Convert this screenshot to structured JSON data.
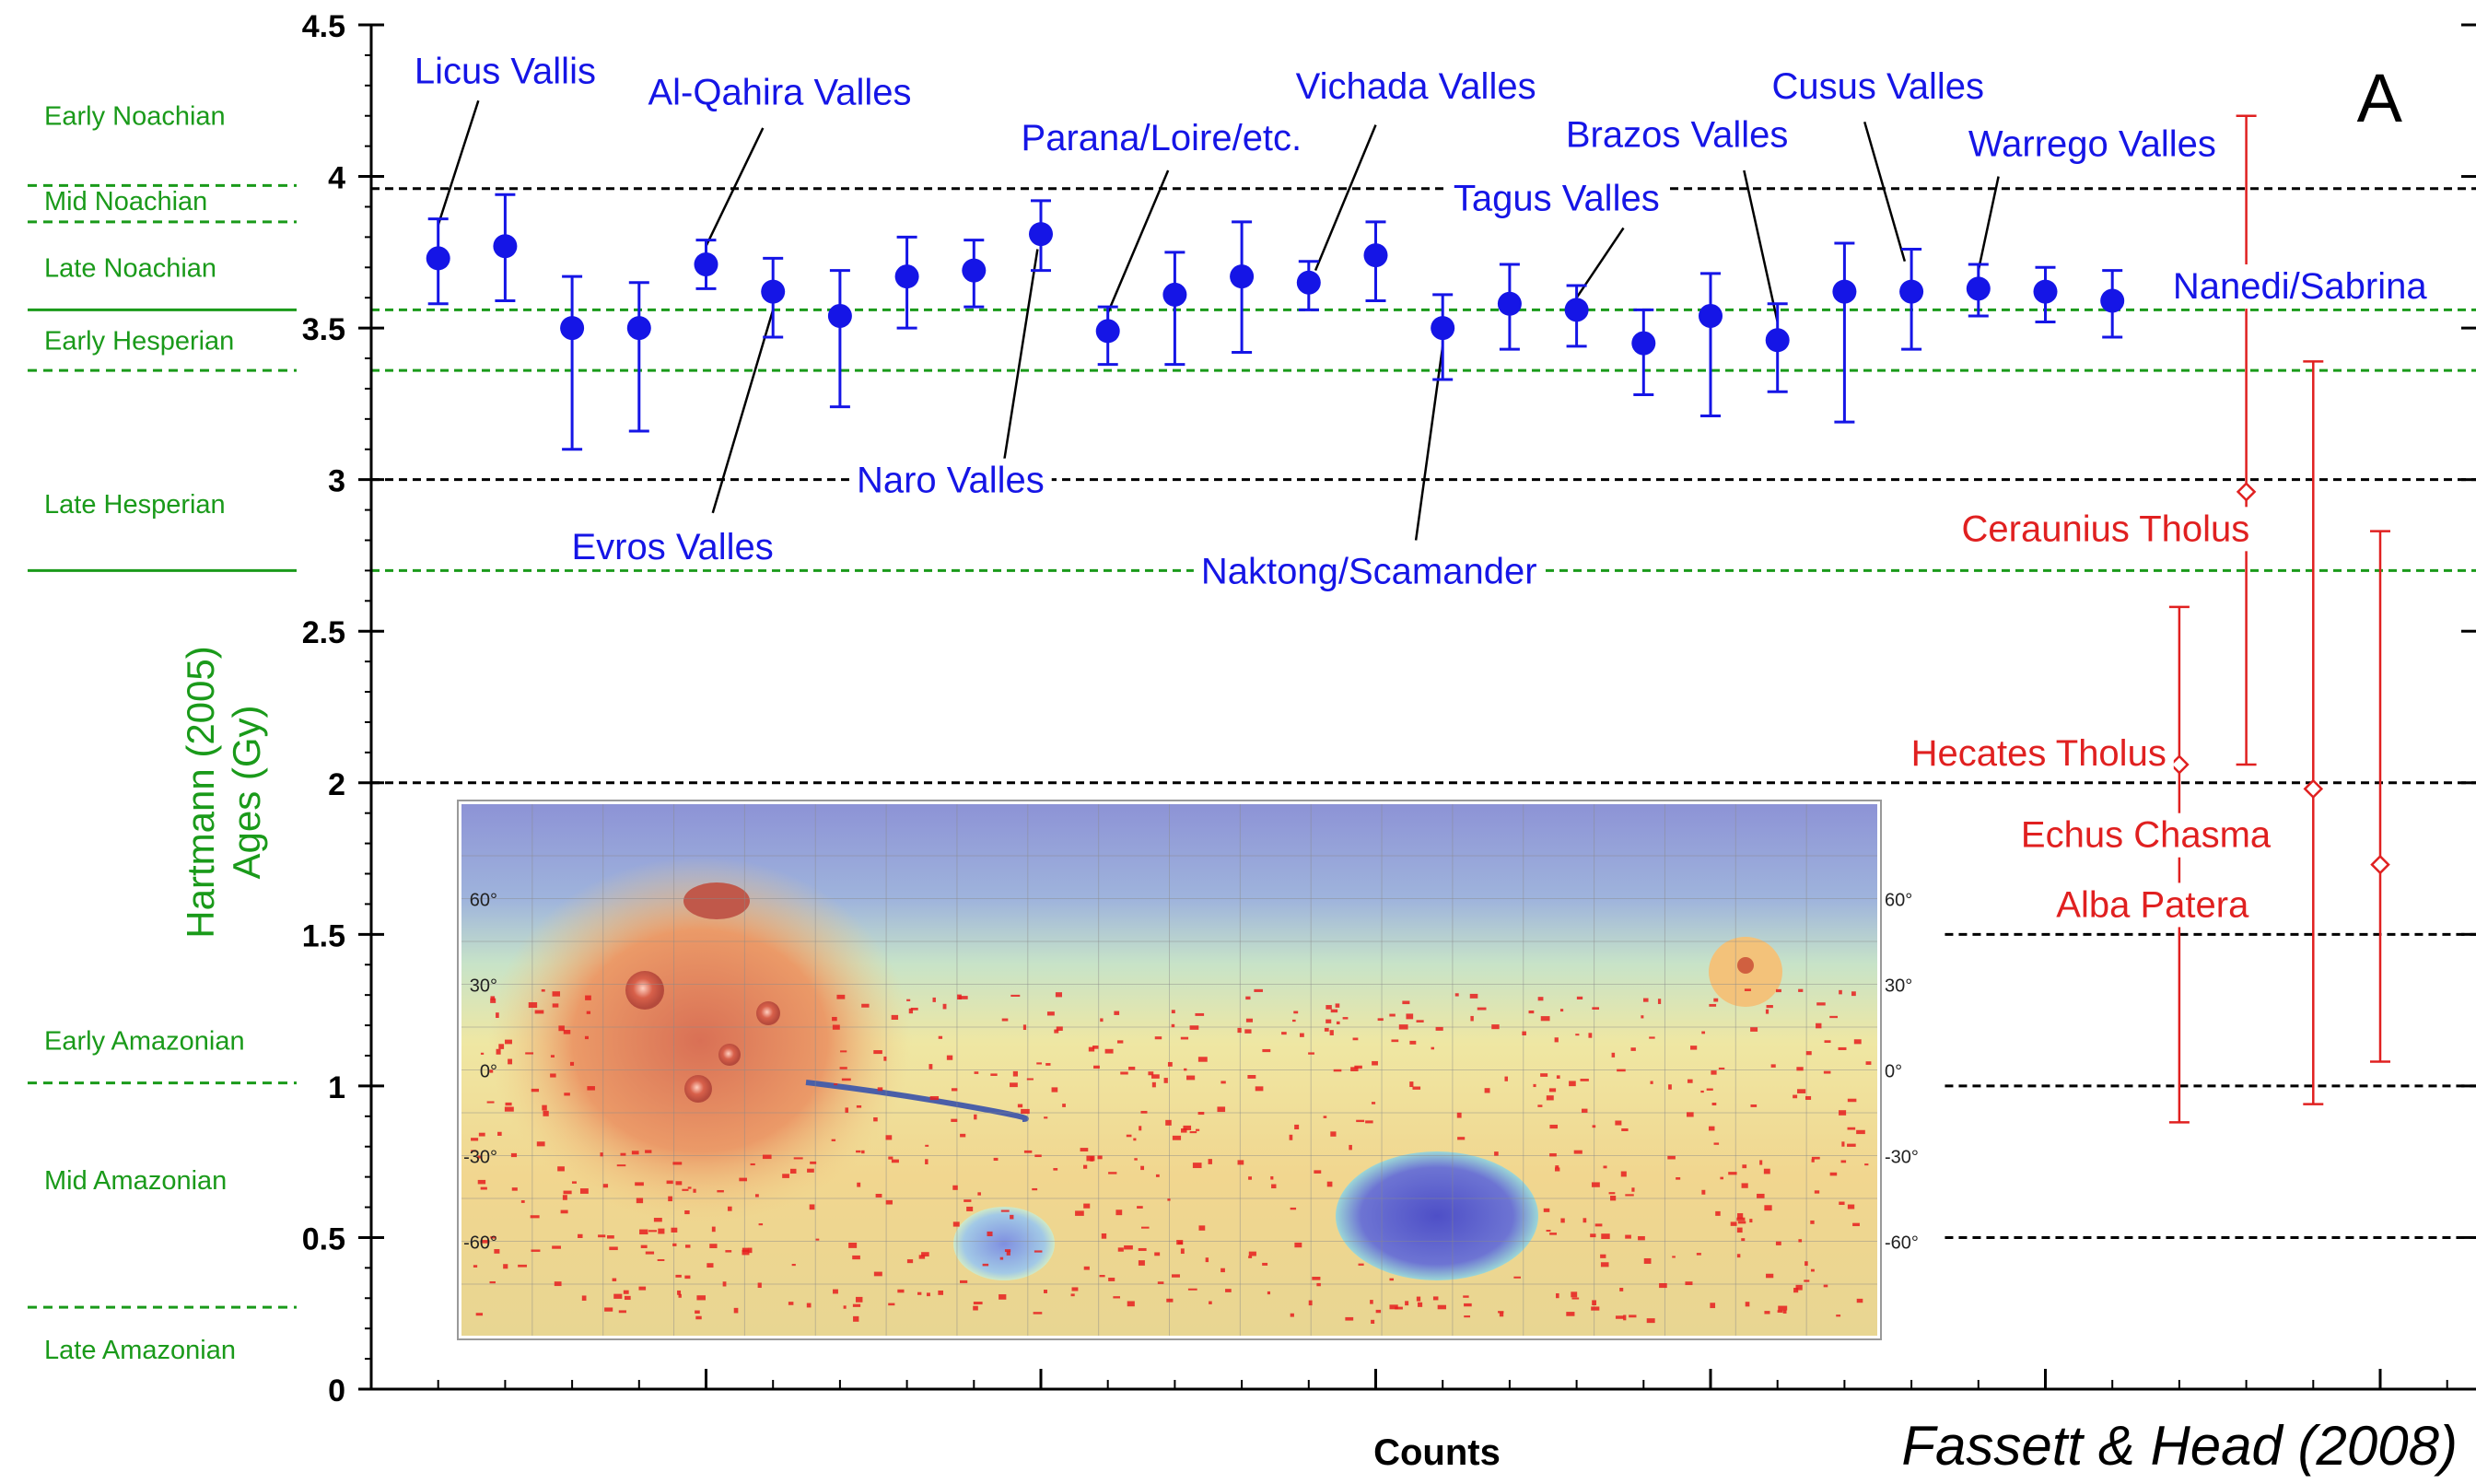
{
  "chart_data": {
    "type": "scatter",
    "panel_label": "A",
    "xlabel": "Counts",
    "ylabel_line1": "Hartmann (2005)",
    "ylabel_line2": "Ages (Gy)",
    "credit": "Fassett & Head (2008)",
    "ylim": [
      0,
      4.5
    ],
    "yticks": [
      {
        "v": 0,
        "label": "0"
      },
      {
        "v": 0.5,
        "label": "0.5"
      },
      {
        "v": 1,
        "label": "1"
      },
      {
        "v": 1.5,
        "label": "1.5"
      },
      {
        "v": 2,
        "label": "2"
      },
      {
        "v": 2.5,
        "label": "2.5"
      },
      {
        "v": 3,
        "label": "3"
      },
      {
        "v": 3.5,
        "label": "3.5"
      },
      {
        "v": 4,
        "label": "4"
      },
      {
        "v": 4.5,
        "label": "4.5"
      }
    ],
    "xlim": [
      0,
      31
    ],
    "xticks": [
      5,
      10,
      15,
      20,
      25,
      30
    ],
    "epochs": [
      {
        "name": "Early Noachian",
        "y": 4.2
      },
      {
        "name": "Mid Noachian",
        "y": 3.92
      },
      {
        "name": "Late Noachian",
        "y": 3.7
      },
      {
        "name": "Early Hesperian",
        "y": 3.46
      },
      {
        "name": "Late Hesperian",
        "y": 2.92
      },
      {
        "name": "Early Amazonian",
        "y": 1.15
      },
      {
        "name": "Mid Amazonian",
        "y": 0.69
      },
      {
        "name": "Late Amazonian",
        "y": 0.13
      }
    ],
    "epoch_boundaries": [
      {
        "y": 3.97,
        "style": "dashed"
      },
      {
        "y": 3.85,
        "style": "dashed"
      },
      {
        "y": 3.56,
        "style": "solid"
      },
      {
        "y": 3.36,
        "style": "dashed"
      },
      {
        "y": 2.7,
        "style": "solid"
      },
      {
        "y": 1.01,
        "style": "dashed"
      },
      {
        "y": 0.27,
        "style": "dashed"
      }
    ],
    "reference_lines": [
      {
        "y": 3.96,
        "color": "#000000",
        "x_from": 0,
        "x_to": 31
      },
      {
        "y": 3.56,
        "color": "#1a9a1a",
        "x_from": 0,
        "x_to": 31
      },
      {
        "y": 3.36,
        "color": "#1a9a1a",
        "x_from": 0,
        "x_to": 31
      },
      {
        "y": 3.0,
        "color": "#000000",
        "x_from": 0,
        "x_to": 31
      },
      {
        "y": 2.7,
        "color": "#1a9a1a",
        "x_from": 0,
        "x_to": 31
      },
      {
        "y": 2.0,
        "color": "#000000",
        "x_from": 0,
        "x_to": 31
      },
      {
        "y": 1.5,
        "color": "#000000",
        "x_from": 23.5,
        "x_to": 31
      },
      {
        "y": 1.0,
        "color": "#000000",
        "x_from": 23.5,
        "x_to": 31
      },
      {
        "y": 0.5,
        "color": "#000000",
        "x_from": 23.5,
        "x_to": 31
      }
    ],
    "series": [
      {
        "color": "#1515e6",
        "marker": "filled-circle",
        "points": [
          {
            "x": 1,
            "y": 3.73,
            "lo": 3.58,
            "hi": 3.86
          },
          {
            "x": 2,
            "y": 3.77,
            "lo": 3.59,
            "hi": 3.94
          },
          {
            "x": 3,
            "y": 3.5,
            "lo": 3.1,
            "hi": 3.67
          },
          {
            "x": 4,
            "y": 3.5,
            "lo": 3.16,
            "hi": 3.65
          },
          {
            "x": 5,
            "y": 3.71,
            "lo": 3.63,
            "hi": 3.79
          },
          {
            "x": 6,
            "y": 3.62,
            "lo": 3.47,
            "hi": 3.73
          },
          {
            "x": 7,
            "y": 3.54,
            "lo": 3.24,
            "hi": 3.69
          },
          {
            "x": 8,
            "y": 3.67,
            "lo": 3.5,
            "hi": 3.8
          },
          {
            "x": 9,
            "y": 3.69,
            "lo": 3.57,
            "hi": 3.79
          },
          {
            "x": 10,
            "y": 3.81,
            "lo": 3.69,
            "hi": 3.92
          },
          {
            "x": 11,
            "y": 3.49,
            "lo": 3.38,
            "hi": 3.57
          },
          {
            "x": 12,
            "y": 3.61,
            "lo": 3.38,
            "hi": 3.75
          },
          {
            "x": 13,
            "y": 3.67,
            "lo": 3.42,
            "hi": 3.85
          },
          {
            "x": 14,
            "y": 3.65,
            "lo": 3.56,
            "hi": 3.72
          },
          {
            "x": 15,
            "y": 3.74,
            "lo": 3.59,
            "hi": 3.85
          },
          {
            "x": 16,
            "y": 3.5,
            "lo": 3.33,
            "hi": 3.61
          },
          {
            "x": 17,
            "y": 3.58,
            "lo": 3.43,
            "hi": 3.71
          },
          {
            "x": 18,
            "y": 3.56,
            "lo": 3.44,
            "hi": 3.64
          },
          {
            "x": 19,
            "y": 3.45,
            "lo": 3.28,
            "hi": 3.56
          },
          {
            "x": 20,
            "y": 3.54,
            "lo": 3.21,
            "hi": 3.68
          },
          {
            "x": 21,
            "y": 3.46,
            "lo": 3.29,
            "hi": 3.58
          },
          {
            "x": 22,
            "y": 3.62,
            "lo": 3.19,
            "hi": 3.78
          },
          {
            "x": 23,
            "y": 3.62,
            "lo": 3.43,
            "hi": 3.76
          },
          {
            "x": 24,
            "y": 3.63,
            "lo": 3.54,
            "hi": 3.71
          },
          {
            "x": 25,
            "y": 3.62,
            "lo": 3.52,
            "hi": 3.7
          },
          {
            "x": 26,
            "y": 3.59,
            "lo": 3.47,
            "hi": 3.69
          }
        ]
      },
      {
        "color": "#e02020",
        "marker": "open-diamond",
        "points": [
          {
            "x": 27,
            "y": 2.06,
            "lo": 0.88,
            "hi": 2.58
          },
          {
            "x": 28,
            "y": 2.96,
            "lo": 2.06,
            "hi": 4.2
          },
          {
            "x": 29,
            "y": 1.98,
            "lo": 0.94,
            "hi": 3.39
          },
          {
            "x": 30,
            "y": 1.73,
            "lo": 1.08,
            "hi": 2.83
          }
        ]
      }
    ],
    "annotations": [
      {
        "text": "Licus Vallis",
        "color": "#1515e6",
        "x": 2.0,
        "y": 4.35,
        "point": 1,
        "lead": [
          1.0,
          3.84,
          1.6,
          4.25
        ]
      },
      {
        "text": "Al-Qahira Valles",
        "color": "#1515e6",
        "x": 6.1,
        "y": 4.28,
        "point": 5,
        "lead": [
          5.0,
          3.77,
          5.85,
          4.16
        ]
      },
      {
        "text": "Parana/Loire/etc.",
        "color": "#1515e6",
        "x": 11.8,
        "y": 4.13,
        "point": 11,
        "lead": [
          11.0,
          3.55,
          11.9,
          4.02
        ]
      },
      {
        "text": "Vichada Valles",
        "color": "#1515e6",
        "x": 15.6,
        "y": 4.3,
        "point": 14,
        "lead": [
          14.1,
          3.69,
          15.0,
          4.17
        ]
      },
      {
        "text": "Brazos Valles",
        "color": "#1515e6",
        "x": 19.5,
        "y": 4.14,
        "point": 21,
        "lead": [
          21.0,
          3.52,
          20.5,
          4.02
        ]
      },
      {
        "text": "Cusus Valles",
        "color": "#1515e6",
        "x": 22.5,
        "y": 4.3,
        "point": 23,
        "lead": [
          22.9,
          3.72,
          22.3,
          4.18
        ]
      },
      {
        "text": "Warrego Valles",
        "color": "#1515e6",
        "x": 25.7,
        "y": 4.11,
        "point": 24,
        "lead": [
          24.0,
          3.69,
          24.3,
          4.0
        ]
      },
      {
        "text": "Tagus Valles",
        "color": "#1515e6",
        "x": 17.7,
        "y": 3.93,
        "point": 18,
        "lead": [
          18.0,
          3.6,
          18.7,
          3.83
        ]
      },
      {
        "text": "Nanedi/Sabrina",
        "color": "#1515e6",
        "x": 28.8,
        "y": 3.64,
        "point": 26,
        "lead": null
      },
      {
        "text": "Evros Valles",
        "color": "#1515e6",
        "x": 4.5,
        "y": 2.78,
        "point": 6,
        "lead": [
          6.0,
          3.56,
          5.1,
          2.89
        ]
      },
      {
        "text": "Naro Valles",
        "color": "#1515e6",
        "x": 8.65,
        "y": 3.0,
        "point": 10,
        "lead": [
          9.95,
          3.76,
          9.45,
          3.06
        ]
      },
      {
        "text": "Naktong/Scamander",
        "color": "#1515e6",
        "x": 14.9,
        "y": 2.7,
        "point": 16,
        "lead": [
          16.0,
          3.44,
          15.6,
          2.8
        ]
      },
      {
        "text": "Ceraunius Tholus",
        "color": "#e02020",
        "x": 25.9,
        "y": 2.84,
        "point": 28,
        "lead": null
      },
      {
        "text": "Hecates Tholus",
        "color": "#e02020",
        "x": 24.9,
        "y": 2.1,
        "point": 27,
        "lead": null
      },
      {
        "text": "Echus Chasma",
        "color": "#e02020",
        "x": 26.5,
        "y": 1.83,
        "point": 29,
        "lead": null
      },
      {
        "text": "Alba Patera",
        "color": "#e02020",
        "x": 26.6,
        "y": 1.6,
        "point": 30,
        "lead": null
      }
    ],
    "legend": "none",
    "grid": false
  },
  "inset_map": {
    "lat_labels_left": [
      "60°",
      "30°",
      "0°",
      "-30°",
      "-60°"
    ],
    "lat_labels_right": [
      "60°",
      "30°",
      "0°",
      "-30°",
      "-60°"
    ],
    "lat_values": [
      60,
      30,
      0,
      -30,
      -60
    ]
  },
  "colors": {
    "blue_series": "#1515e6",
    "red_series": "#e02020",
    "epoch_green": "#1a9a1a",
    "axis": "#000000"
  }
}
